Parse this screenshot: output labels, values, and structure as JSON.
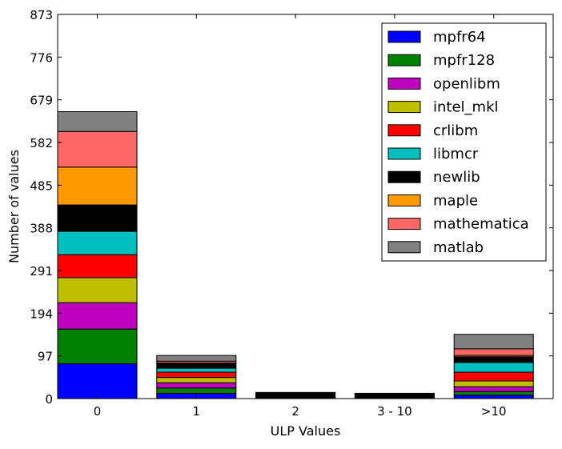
{
  "chart_data": {
    "type": "bar",
    "stacked": true,
    "title": "",
    "xlabel": "ULP Values",
    "ylabel": "Number of values",
    "categories": [
      "0",
      "1",
      "2",
      "3 - 10",
      ">10"
    ],
    "ylim": [
      0,
      873
    ],
    "yticks": [
      0,
      97,
      194,
      291,
      388,
      485,
      582,
      679,
      776,
      873
    ],
    "grid": false,
    "legend_position": "top-right",
    "series": [
      {
        "name": "mpfr64",
        "color": "#0000ff",
        "values": [
          79,
          12,
          1,
          0,
          8
        ]
      },
      {
        "name": "mpfr128",
        "color": "#008000",
        "values": [
          79,
          12,
          1,
          0,
          8
        ]
      },
      {
        "name": "openlibm",
        "color": "#bf00bf",
        "values": [
          60,
          12,
          1,
          1,
          11
        ]
      },
      {
        "name": "intel_mkl",
        "color": "#bfbf00",
        "values": [
          57,
          12,
          1,
          1,
          13
        ]
      },
      {
        "name": "crlibm",
        "color": "#ff0000",
        "values": [
          52,
          12,
          1,
          1,
          20
        ]
      },
      {
        "name": "libmcr",
        "color": "#00bfbf",
        "values": [
          53,
          9,
          1,
          1,
          22
        ]
      },
      {
        "name": "newlib",
        "color": "#000000",
        "values": [
          60,
          11,
          4,
          4,
          13
        ]
      },
      {
        "name": "maple",
        "color": "#ff9900",
        "values": [
          86,
          1,
          1,
          1,
          3
        ]
      },
      {
        "name": "mathematica",
        "color": "#ff6666",
        "values": [
          81,
          4,
          2,
          2,
          15
        ]
      },
      {
        "name": "matlab",
        "color": "#808080",
        "values": [
          45,
          13,
          1,
          1,
          33
        ]
      }
    ]
  }
}
